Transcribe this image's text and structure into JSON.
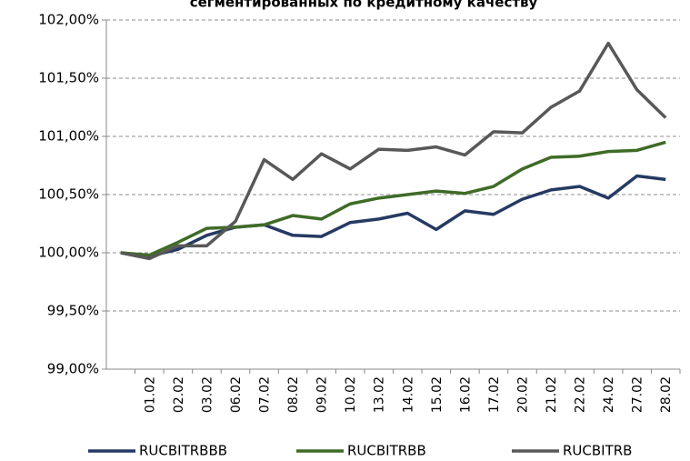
{
  "chart_data": {
    "type": "line",
    "title": "сегментированных по кредитному качеству",
    "categories": [
      null,
      "01.02",
      "02.02",
      "03.02",
      "06.02",
      "07.02",
      "08.02",
      "09.02",
      "10.02",
      "13.02",
      "14.02",
      "15.02",
      "16.02",
      "17.02",
      "20.02",
      "21.02",
      "22.02",
      "24.02",
      "27.02",
      "28.02"
    ],
    "series": [
      {
        "name": "RUCBITRBBB",
        "color": "#253a63",
        "values": [
          100.0,
          99.97,
          100.03,
          100.15,
          100.22,
          100.24,
          100.15,
          100.14,
          100.26,
          100.29,
          100.34,
          100.2,
          100.36,
          100.33,
          100.46,
          100.54,
          100.57,
          100.47,
          100.66,
          100.63
        ]
      },
      {
        "name": "RUCBITRBB",
        "color": "#3f6b27",
        "values": [
          100.0,
          99.98,
          100.09,
          100.21,
          100.22,
          100.24,
          100.32,
          100.29,
          100.42,
          100.47,
          100.5,
          100.53,
          100.51,
          100.57,
          100.72,
          100.82,
          100.83,
          100.87,
          100.88,
          100.95
        ]
      },
      {
        "name": "RUCBITRB",
        "color": "#585858",
        "values": [
          100.0,
          99.95,
          100.06,
          100.06,
          100.27,
          100.8,
          100.63,
          100.85,
          100.72,
          100.89,
          100.88,
          100.91,
          100.84,
          101.04,
          101.03,
          101.25,
          101.39,
          101.8,
          101.4,
          101.16
        ]
      }
    ],
    "ylim": [
      99,
      102
    ],
    "yticks": [
      {
        "value": 99,
        "label": "99,00%"
      },
      {
        "value": 99.5,
        "label": "99,50%"
      },
      {
        "value": 100,
        "label": "100,00%"
      },
      {
        "value": 100.5,
        "label": "100,50%"
      },
      {
        "value": 101,
        "label": "101,00%"
      },
      {
        "value": 101.5,
        "label": "101,50%"
      },
      {
        "value": 102,
        "label": "102,00%"
      }
    ],
    "grid": true,
    "legend": "bottom"
  }
}
